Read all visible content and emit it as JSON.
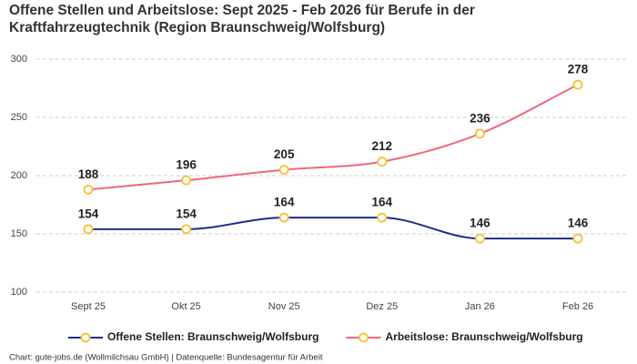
{
  "chart_data": {
    "type": "line",
    "title": "Offene Stellen und Arbeitslose: Sept 2025 - Feb 2026 für Berufe in der Kraftfahrzeugtechnik (Region Braunschweig/Wolfsburg)",
    "categories": [
      "Sept 25",
      "Okt 25",
      "Nov 25",
      "Dez 25",
      "Jan 26",
      "Feb 26"
    ],
    "series": [
      {
        "name": "Offene Stellen: Braunschweig/Wolfsburg",
        "color": "#1f2d8a",
        "values": [
          154,
          154,
          164,
          164,
          146,
          146
        ]
      },
      {
        "name": "Arbeitslose: Braunschweig/Wolfsburg",
        "color": "#f0677f",
        "values": [
          188,
          196,
          205,
          212,
          236,
          278
        ]
      }
    ],
    "marker_color": "#f5c542",
    "ylim": [
      100,
      300
    ],
    "yticks": [
      100,
      150,
      200,
      250,
      300
    ],
    "grid": true,
    "source": "Chart: gute-jobs.de (Wollmilchsau GmbH) | Datenquelle: Bundesagentur für Arbeit"
  }
}
